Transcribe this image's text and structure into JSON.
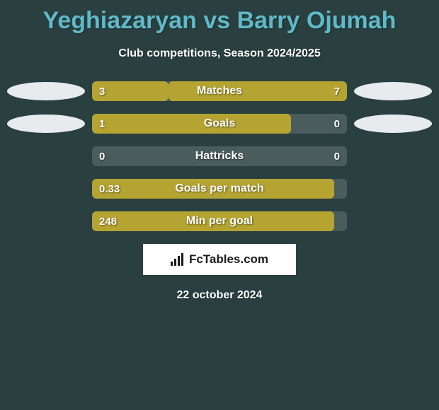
{
  "title": "Yeghiazaryan vs Barry Ojumah",
  "subtitle": "Club competitions, Season 2024/2025",
  "date": "22 october 2024",
  "logo_text": "FcTables.com",
  "colors": {
    "background": "#2a3f3f",
    "title": "#5fb9c9",
    "text": "#ffffff",
    "bar_fill": "#b5a432",
    "bar_track": "#4a5c5c",
    "oval": "#e8ebee",
    "logo_bg": "#ffffff",
    "logo_fg": "#1a1a1a"
  },
  "rows": [
    {
      "label": "Matches",
      "left_val": "3",
      "right_val": "7",
      "left_pct": 30,
      "right_pct": 70,
      "show_ovals": true
    },
    {
      "label": "Goals",
      "left_val": "1",
      "right_val": "0",
      "left_pct": 78,
      "right_pct": 0,
      "show_ovals": true
    },
    {
      "label": "Hattricks",
      "left_val": "0",
      "right_val": "0",
      "left_pct": 0,
      "right_pct": 0,
      "show_ovals": false
    },
    {
      "label": "Goals per match",
      "left_val": "0.33",
      "right_val": "",
      "left_pct": 95,
      "right_pct": 0,
      "show_ovals": false
    },
    {
      "label": "Min per goal",
      "left_val": "248",
      "right_val": "",
      "left_pct": 95,
      "right_pct": 0,
      "show_ovals": false
    }
  ]
}
